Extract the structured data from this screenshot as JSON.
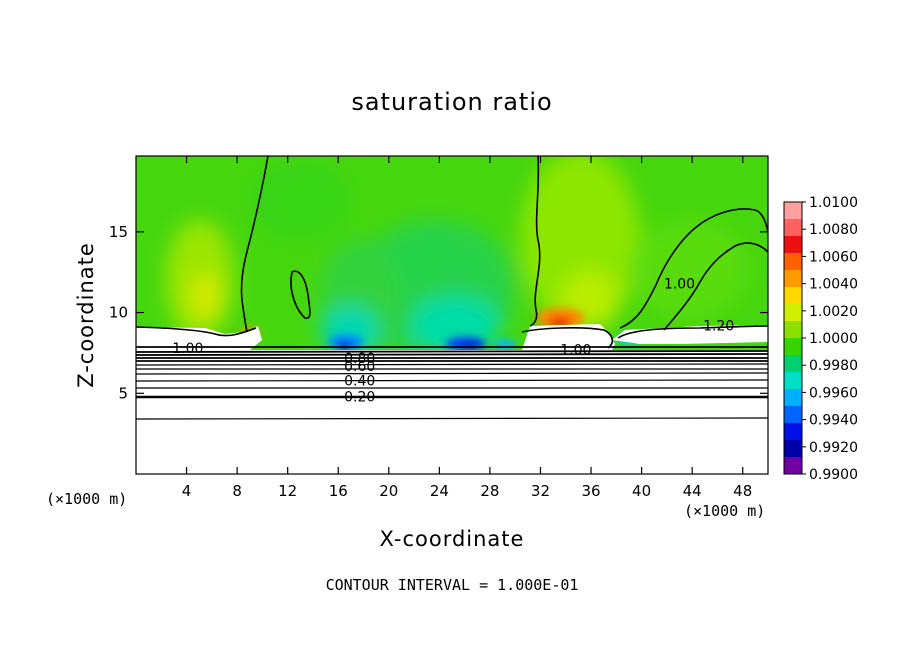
{
  "chart_data": {
    "type": "heatmap",
    "title": "saturation ratio",
    "xlabel": "X-coordinate",
    "ylabel": "Z-coordinate",
    "x_unit": "(×1000 m)",
    "z_unit": "(×1000 m)",
    "footer": "CONTOUR INTERVAL = 1.000E-01",
    "xlim": [
      0,
      50
    ],
    "ylim": [
      0,
      19.7
    ],
    "x_ticks": [
      4,
      8,
      12,
      16,
      20,
      24,
      28,
      32,
      36,
      40,
      44,
      48
    ],
    "y_ticks": [
      5,
      10,
      15
    ],
    "colorbar": {
      "min": 0.99,
      "max": 1.01,
      "ticks": [
        "1.0100",
        "1.0080",
        "1.0060",
        "1.0040",
        "1.0020",
        "1.0000",
        "0.9980",
        "0.9960",
        "0.9940",
        "0.9920",
        "0.9900"
      ],
      "colors": [
        "#ffa0a0",
        "#ff6060",
        "#ee1010",
        "#ff6000",
        "#ff9a00",
        "#ffd800",
        "#d0f000",
        "#8ce000",
        "#38d400",
        "#00d070",
        "#00e0c8",
        "#00b0ff",
        "#0064ff",
        "#0010e8",
        "#0000a8",
        "#7000a0"
      ]
    },
    "contour_labels": [
      {
        "x": 4.1,
        "z": 7.8,
        "text": "1.00"
      },
      {
        "x": 34.8,
        "z": 7.7,
        "text": "1.00"
      },
      {
        "x": 43.0,
        "z": 11.8,
        "text": "1.00"
      },
      {
        "x": 46.1,
        "z": 9.2,
        "text": "1.20"
      },
      {
        "x": 17.7,
        "z": 7.2,
        "text": "0.80"
      },
      {
        "x": 17.7,
        "z": 6.7,
        "text": "0.60"
      },
      {
        "x": 17.7,
        "z": 5.8,
        "text": "0.40"
      },
      {
        "x": 17.7,
        "z": 4.8,
        "text": "0.20"
      }
    ]
  }
}
